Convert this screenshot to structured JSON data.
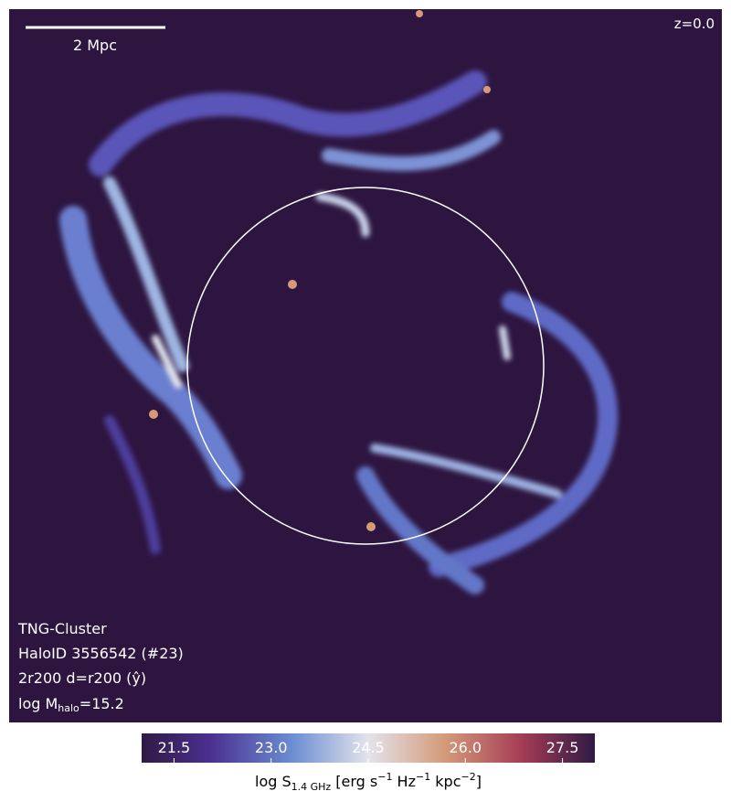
{
  "chart_data": {
    "type": "image",
    "annotations": {
      "scale_bar": "2 Mpc",
      "redshift": "z=0.0",
      "simulation": "TNG-Cluster",
      "halo_id": "HaloID 3556542 (#23)",
      "projection": "2r200 d=r200 (ŷ)",
      "mass_prefix": "log M",
      "mass_sub": "halo",
      "mass_suffix": "=15.2"
    },
    "colorbar": {
      "clim": [
        21,
        28
      ],
      "ticks": [
        21.5,
        {
          "value": 23,
          "label": "23.0"
        },
        24.5,
        {
          "value": 26,
          "label": "26.0"
        },
        27.5
      ],
      "label": [
        "log S",
        "1.4 GHz",
        " [erg s",
        "−1",
        " Hz",
        "−1",
        " kpc",
        "−2",
        "]"
      ]
    }
  }
}
